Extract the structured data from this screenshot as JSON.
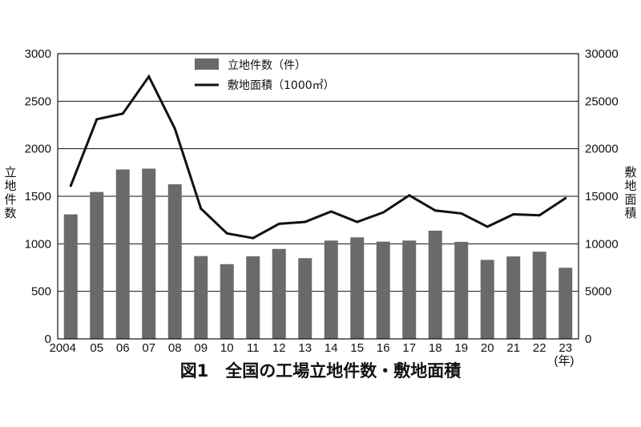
{
  "chart_data": {
    "type": "bar",
    "title": "図1　全国の工場立地件数・敷地面積",
    "categories": [
      "2004",
      "05",
      "06",
      "07",
      "08",
      "09",
      "10",
      "11",
      "12",
      "13",
      "14",
      "15",
      "16",
      "17",
      "18",
      "19",
      "20",
      "21",
      "22",
      "23"
    ],
    "x_unit": "(年)",
    "y_left_label": "立地件数",
    "y_right_label": "敷地面積",
    "y_left_lim": [
      0,
      3000
    ],
    "y_left_ticks": [
      "0",
      "500",
      "1000",
      "1500",
      "2000",
      "2500",
      "3000"
    ],
    "y_right_lim": [
      0,
      30000
    ],
    "y_right_ticks": [
      "0",
      "5000",
      "10000",
      "15000",
      "20000",
      "25000",
      "30000"
    ],
    "grid": "horizontal",
    "legend_position": "top-center",
    "series": [
      {
        "name": "立地件数（件）",
        "type": "bar",
        "axis": "left",
        "color": "#6a6a6a",
        "values": [
          1310,
          1545,
          1782,
          1791,
          1626,
          871,
          786,
          869,
          946,
          849,
          1034,
          1068,
          1023,
          1034,
          1138,
          1021,
          831,
          867,
          917,
          748
        ]
      },
      {
        "name": "敷地面積（1000㎡）",
        "type": "line",
        "axis": "right",
        "color": "#111111",
        "values": [
          16100,
          23100,
          23700,
          27600,
          22100,
          13700,
          11100,
          10600,
          12100,
          12300,
          13400,
          12300,
          13300,
          15100,
          13500,
          13200,
          11800,
          13100,
          13000,
          14800
        ]
      }
    ]
  }
}
